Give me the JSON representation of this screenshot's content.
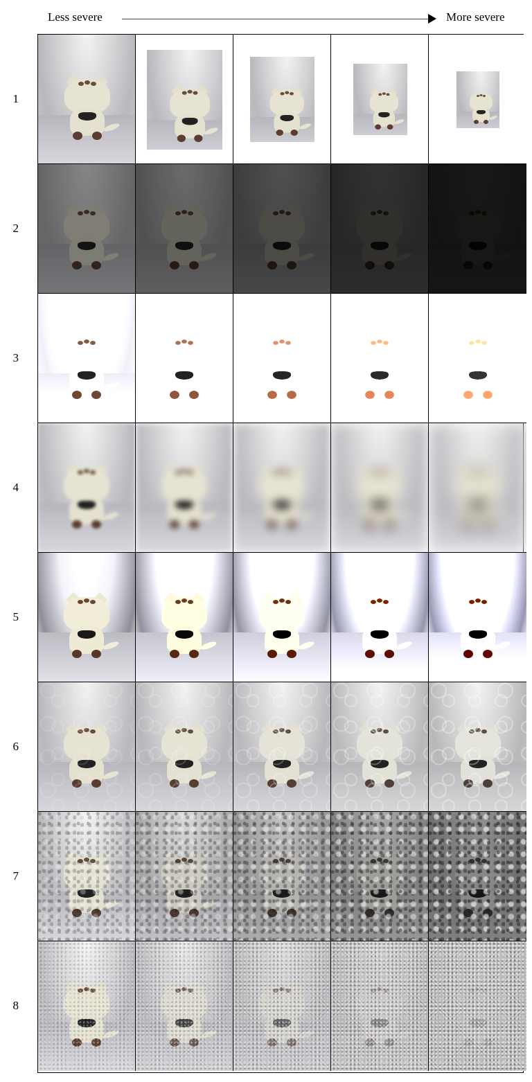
{
  "header": {
    "left_label": "Less severe",
    "right_label": "More severe"
  },
  "rows": [
    {
      "label": "1"
    },
    {
      "label": "2"
    },
    {
      "label": "3"
    },
    {
      "label": "4"
    },
    {
      "label": "5"
    },
    {
      "label": "6"
    },
    {
      "label": "7"
    },
    {
      "label": "8"
    }
  ],
  "severity_levels": 5
}
